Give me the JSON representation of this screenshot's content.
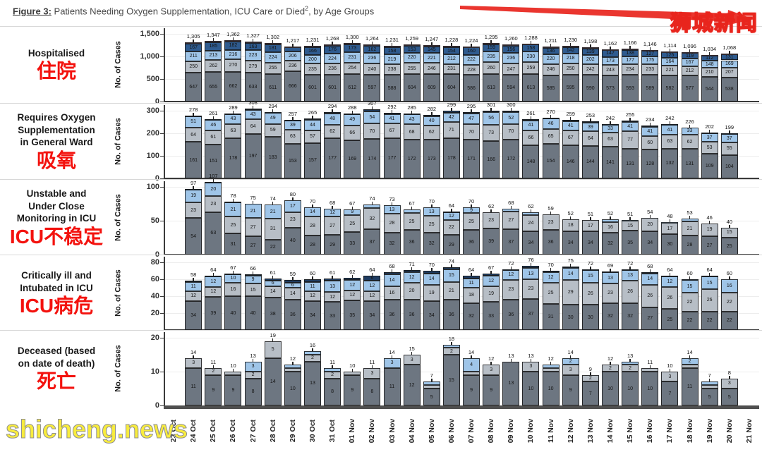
{
  "title": {
    "figure_label": "Figure 3:",
    "main": " Patients Needing Oxygen Supplementation, ICU Care or Died",
    "sup": "2",
    "tail": ", by Age Groups"
  },
  "watermarks": {
    "top_right": "狮城新闻",
    "bottom_left": "shicheng.news"
  },
  "x_axis": {
    "tick_labels": [
      "23 Oct",
      "24 Oct",
      "25 Oct",
      "26 Oct",
      "27 Oct",
      "28 Oct",
      "29 Oct",
      "30 Oct",
      "31 Oct",
      "01 Nov",
      "02 Nov",
      "03 Nov",
      "04 Nov",
      "05 Nov",
      "06 Nov",
      "07 Nov",
      "08 Nov",
      "09 Nov",
      "10 Nov",
      "11 Nov",
      "12 Nov",
      "13 Nov",
      "14 Nov",
      "15 Nov",
      "16 Nov",
      "17 Nov",
      "18 Nov",
      "19 Nov",
      "20 Nov",
      "21 Nov"
    ]
  },
  "chart_data": {
    "type": "bar",
    "stacked": true,
    "grid": true,
    "legend": "none",
    "bar_dates": [
      "24 Oct",
      "25 Oct",
      "26 Oct",
      "27 Oct",
      "28 Oct",
      "29 Oct",
      "30 Oct",
      "31 Oct",
      "01 Nov",
      "02 Nov",
      "03 Nov",
      "04 Nov",
      "05 Nov",
      "06 Nov",
      "07 Nov",
      "08 Nov",
      "09 Nov",
      "10 Nov",
      "11 Nov",
      "12 Nov",
      "13 Nov",
      "14 Nov",
      "15 Nov",
      "16 Nov",
      "17 Nov",
      "18 Nov",
      "19 Nov",
      "20 Nov"
    ],
    "panels": [
      {
        "id": "hospitalised",
        "label_lines": [
          "Hospitalised"
        ],
        "label_zh": "住院",
        "ylabel": "No. of Cases",
        "yticks": [
          0,
          500,
          1000,
          1500
        ],
        "ylim": [
          0,
          1500
        ],
        "totals": [
          1305,
          1347,
          1362,
          1327,
          1302,
          1217,
          1231,
          1268,
          1300,
          1264,
          1231,
          1259,
          1247,
          1228,
          1224,
          1295,
          1260,
          1288,
          1211,
          1230,
          1198,
          1162,
          1166,
          1146,
          1114,
          1096,
          1034,
          1068
        ],
        "series": [
          {
            "name": "age-band-1",
            "color": "#6d7681",
            "values": [
              647,
              655,
              662,
              633,
              611,
              666,
              601,
              601,
              612,
              597,
              588,
              604,
              609,
              604,
              586,
              613,
              594,
              613,
              585,
              595,
              590,
              573,
              593,
              589,
              582,
              577,
              544,
              538
            ]
          },
          {
            "name": "age-band-2",
            "color": "#b7bec6",
            "values": [
              250,
              262,
              270,
              279,
              255,
              236,
              235,
              236,
              254,
              240,
              238,
              255,
              246,
              231,
              228,
              260,
              247,
              259,
              246,
              250,
              242,
              243,
              234,
              233,
              221,
              212,
              210,
              207
            ]
          },
          {
            "name": "age-band-3",
            "color": "#9fc5e8",
            "values": [
              211,
              213,
              216,
              223,
              224,
              206,
              200,
              224,
              231,
              236,
              219,
              220,
              221,
              212,
              222,
              235,
              236,
              230,
              220,
              218,
              202,
              173,
              177,
              175,
              164,
              167,
              148,
              169
            ]
          },
          {
            "name": "age-band-4",
            "color": "#2f5b8f",
            "values": [
              167,
              185,
              182,
              163,
              181,
              92,
              166,
              176,
              173,
              162,
              158,
              153,
              145,
              154,
              160,
              159,
              156,
              158,
              136,
              142,
              139,
              147,
              138,
              127,
              125,
              119,
              112,
              131
            ]
          },
          {
            "name": "age-band-5",
            "color": "#c08ba5",
            "values": [
              30,
              32,
              32,
              29,
              31,
              17,
              29,
              31,
              30,
              29,
              28,
              27,
              26,
              27,
              28,
              28,
              27,
              28,
              24,
              25,
              25,
              26,
              24,
              22,
              22,
              21,
              20,
              23
            ]
          }
        ]
      },
      {
        "id": "oxygen-general-ward",
        "label_lines": [
          "Requires Oxygen",
          "Supplementation",
          "in General Ward"
        ],
        "label_zh": "吸氧",
        "ylabel": "No. of Cases",
        "yticks": [
          0,
          100,
          200,
          300
        ],
        "ylim": [
          0,
          310
        ],
        "totals": [
          278,
          261,
          289,
          308,
          294,
          257,
          265,
          294,
          288,
          307,
          292,
          285,
          282,
          299,
          295,
          301,
          300,
          261,
          270,
          259,
          253,
          242,
          255,
          234,
          242,
          226,
          202,
          199
        ],
        "series": [
          {
            "name": "age-band-1",
            "color": "#6d7681",
            "values": [
              161,
              151,
              178,
              197,
              183,
              153,
              157,
              177,
              169,
              174,
              177,
              172,
              173,
              178,
              171,
              166,
              172,
              148,
              154,
              146,
              144,
              141,
              131,
              128,
              132,
              131,
              109,
              104
            ]
          },
          {
            "name": "age-band-2",
            "color": "#b7bec6",
            "values": [
              64,
              61,
              63,
              64,
              59,
              63,
              57,
              62,
              66,
              70,
              67,
              68,
              62,
              71,
              70,
              73,
              70,
              66,
              65,
              67,
              64,
              63,
              77,
              60,
              63,
              62,
              53,
              55
            ]
          },
          {
            "name": "age-band-3",
            "color": "#9fc5e8",
            "values": [
              51,
              46,
              43,
              43,
              49,
              39,
              44,
              48,
              49,
              54,
              41,
              43,
              40,
              42,
              47,
              56,
              52,
              41,
              46,
              41,
              39,
              33,
              41,
              41,
              41,
              33,
              37,
              37
            ]
          },
          {
            "name": "age-band-4",
            "color": "#1f3c61",
            "values": [
              2,
              3,
              5,
              4,
              3,
              2,
              7,
              7,
              4,
              9,
              7,
              2,
              7,
              8,
              7,
              6,
              6,
              6,
              5,
              5,
              6,
              5,
              6,
              5,
              6,
              0,
              3,
              3
            ]
          }
        ]
      },
      {
        "id": "unstable-icu",
        "label_lines": [
          "Unstable and",
          "Under Close",
          "Monitoring in ICU"
        ],
        "label_zh": "ICU不稳定",
        "ylabel": "No. of Cases",
        "yticks": [
          0,
          50,
          100
        ],
        "ylim": [
          0,
          110
        ],
        "totals": [
          97,
          107,
          78,
          75,
          74,
          80,
          70,
          68,
          67,
          74,
          73,
          67,
          70,
          64,
          70,
          62,
          68,
          62,
          59,
          52,
          51,
          52,
          51,
          54,
          48,
          53,
          46,
          40
        ],
        "series": [
          {
            "name": "age-band-1",
            "color": "#6d7681",
            "values": [
              54,
              63,
              31,
              27,
              22,
              40,
              28,
              29,
              33,
              37,
              32,
              36,
              32,
              29,
              36,
              39,
              37,
              34,
              36,
              34,
              34,
              32,
              35,
              34,
              30,
              28,
              27,
              25
            ]
          },
          {
            "name": "age-band-2",
            "color": "#b7bec6",
            "values": [
              23,
              23,
              25,
              27,
              31,
              23,
              28,
              27,
              25,
              32,
              28,
              25,
              25,
              22,
              25,
              23,
              27,
              24,
              23,
              18,
              17,
              16,
              15,
              20,
              17,
              21,
              19,
              15
            ]
          },
          {
            "name": "age-band-3",
            "color": "#9fc5e8",
            "values": [
              19,
              20,
              21,
              21,
              21,
              17,
              14,
              12,
              9,
              5,
              13,
              6,
              13,
              12,
              9,
              0,
              4,
              4,
              0,
              0,
              0,
              4,
              1,
              0,
              1,
              4,
              0,
              0
            ]
          },
          {
            "name": "age-band-4",
            "color": "#1f3c61",
            "values": [
              1,
              1,
              1,
              0,
              0,
              0,
              0,
              0,
              0,
              0,
              0,
              0,
              0,
              1,
              0,
              0,
              0,
              0,
              0,
              0,
              0,
              0,
              0,
              0,
              0,
              0,
              0,
              0
            ]
          }
        ]
      },
      {
        "id": "critically-ill-icu",
        "label_lines": [
          "Critically ill and",
          "Intubated in ICU"
        ],
        "label_zh": "ICU病危",
        "ylabel": "No. of Cases",
        "yticks": [
          20,
          40,
          60,
          80
        ],
        "ylim": [
          0,
          80
        ],
        "totals": [
          58,
          64,
          67,
          66,
          61,
          59,
          60,
          61,
          62,
          64,
          68,
          71,
          70,
          74,
          64,
          67,
          72,
          76,
          70,
          75,
          72,
          69,
          72,
          68,
          64,
          60,
          64,
          60
        ],
        "series": [
          {
            "name": "age-band-1",
            "color": "#6d7681",
            "values": [
              34,
              39,
              40,
              40,
              38,
              36,
              34,
              33,
              35,
              34,
              36,
              36,
              34,
              36,
              32,
              33,
              36,
              37,
              31,
              30,
              30,
              32,
              32,
              27,
              25,
              22,
              22,
              22
            ]
          },
          {
            "name": "age-band-2",
            "color": "#b7bec6",
            "values": [
              12,
              12,
              16,
              15,
              14,
              14,
              12,
              12,
              12,
              12,
              16,
              20,
              19,
              21,
              18,
              19,
              23,
              23,
              25,
              29,
              26,
              23,
              26,
              26,
              26,
              22,
              26,
              22
            ]
          },
          {
            "name": "age-band-3",
            "color": "#9fc5e8",
            "values": [
              11,
              12,
              10,
              9,
              6,
              6,
              11,
              13,
              12,
              12,
              14,
              12,
              14,
              15,
              11,
              12,
              12,
              13,
              12,
              14,
              15,
              13,
              13,
              14,
              12,
              15,
              15,
              16
            ]
          },
          {
            "name": "age-band-4",
            "color": "#1f3c61",
            "values": [
              1,
              1,
              1,
              2,
              3,
              3,
              3,
              3,
              3,
              6,
              2,
              3,
              3,
              2,
              3,
              3,
              1,
              3,
              2,
              2,
              1,
              1,
              1,
              1,
              1,
              1,
              1,
              0
            ]
          }
        ]
      },
      {
        "id": "deceased",
        "label_lines": [
          "Deceased (based",
          "on date of death)"
        ],
        "label_zh": "死亡",
        "ylabel": "No. of Cases",
        "yticks": [
          0,
          10,
          20
        ],
        "ylim": [
          0,
          20
        ],
        "totals": [
          14,
          11,
          10,
          13,
          19,
          12,
          16,
          11,
          10,
          11,
          14,
          15,
          7,
          18,
          14,
          12,
          13,
          13,
          12,
          14,
          9,
          12,
          13,
          11,
          10,
          14,
          7,
          8
        ],
        "series": [
          {
            "name": "age-band-1",
            "color": "#6d7681",
            "values": [
              11,
              9,
              9,
              8,
              14,
              10,
              13,
              8,
              9,
              8,
              11,
              12,
              5,
              15,
              9,
              9,
              13,
              10,
              10,
              9,
              7,
              10,
              10,
              10,
              7,
              11,
              5,
              5
            ]
          },
          {
            "name": "age-band-2",
            "color": "#b7bec6",
            "values": [
              3,
              2,
              1,
              2,
              5,
              1,
              2,
              2,
              1,
              3,
              0,
              3,
              1,
              2,
              1,
              3,
              0,
              3,
              1,
              3,
              2,
              2,
              2,
              1,
              3,
              1,
              1,
              3
            ]
          },
          {
            "name": "age-band-3",
            "color": "#9fc5e8",
            "values": [
              0,
              0,
              0,
              3,
              0,
              1,
              1,
              1,
              0,
              0,
              3,
              0,
              1,
              1,
              4,
              0,
              0,
              0,
              1,
              2,
              0,
              0,
              1,
              0,
              0,
              2,
              1,
              0
            ]
          }
        ]
      }
    ]
  }
}
